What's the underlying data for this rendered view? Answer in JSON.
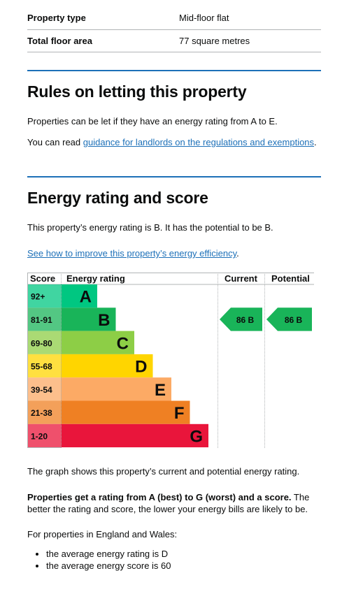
{
  "summary": [
    {
      "key": "Property type",
      "value": "Mid-floor flat"
    },
    {
      "key": "Total floor area",
      "value": "77 square metres"
    }
  ],
  "letting": {
    "title": "Rules on letting this property",
    "para1": "Properties can be let if they have an energy rating from A to E.",
    "para2_prefix": "You can read ",
    "para2_link": "guidance for landlords on the regulations and exemptions",
    "para2_suffix": "."
  },
  "energy": {
    "title": "Energy rating and score",
    "para1": "This property’s energy rating is B. It has the potential to be B.",
    "improve_link": "See how to improve this property’s energy efficiency",
    "improve_suffix": ".",
    "graph_caption": "The graph shows this property’s current and potential energy rating.",
    "rating_explainer_bold": "Properties get a rating from A (best) to G (worst) and a score.",
    "rating_explainer_rest": " The better the rating and score, the lower your energy bills are likely to be.",
    "avg_intro": "For properties in England and Wales:",
    "avg_bullets": [
      "the average energy rating is D",
      "the average energy score is 60"
    ]
  },
  "chart_data": {
    "type": "bar",
    "headers": {
      "score": "Score",
      "rating": "Energy rating",
      "current": "Current",
      "potential": "Potential"
    },
    "bands": [
      {
        "letter": "A",
        "range": "92+",
        "color": "#008054",
        "label_bg": "#00c781"
      },
      {
        "letter": "B",
        "range": "81-91",
        "color": "#19b459",
        "label_bg": "#19b459"
      },
      {
        "letter": "C",
        "range": "69-80",
        "color": "#8dce46",
        "label_bg": "#8dce46"
      },
      {
        "letter": "D",
        "range": "55-68",
        "color": "#ffd500",
        "label_bg": "#ffd500"
      },
      {
        "letter": "E",
        "range": "39-54",
        "color": "#fcaa65",
        "label_bg": "#fcaa65"
      },
      {
        "letter": "F",
        "range": "21-38",
        "color": "#ef8023",
        "label_bg": "#ef8023"
      },
      {
        "letter": "G",
        "range": "1-20",
        "color": "#e9153b",
        "label_bg": "#e9153b"
      }
    ],
    "current": {
      "score": 86,
      "band": "B",
      "label": "86 B"
    },
    "potential": {
      "score": 86,
      "band": "B",
      "label": "86 B"
    }
  }
}
